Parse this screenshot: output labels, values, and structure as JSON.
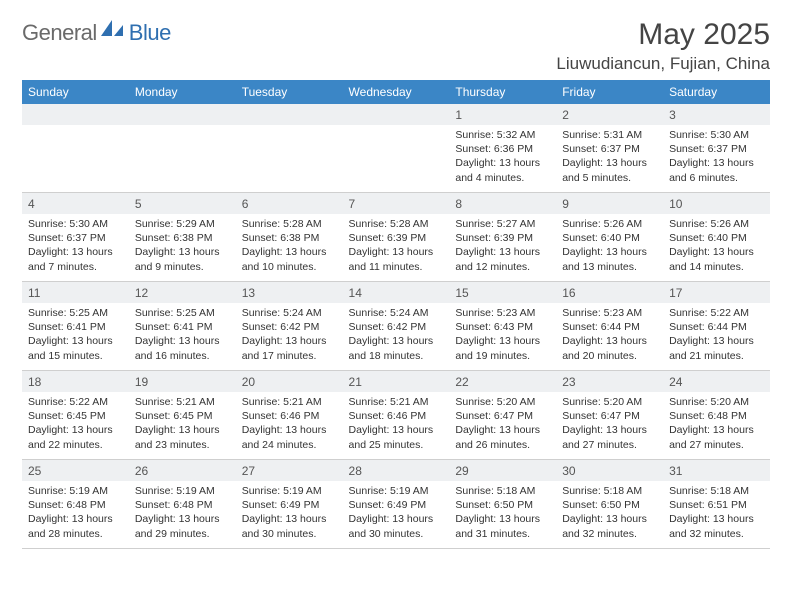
{
  "brand": {
    "general": "General",
    "blue": "Blue"
  },
  "title": "May 2025",
  "location": "Liuwudiancun, Fujian, China",
  "colors": {
    "header_bg": "#3b86c6",
    "header_text": "#ffffff",
    "daynum_bg": "#eef0f2",
    "grid_line": "#cfcfcf",
    "body_text": "#333333",
    "logo_gray": "#6a6a6a",
    "logo_blue": "#2f6fb0"
  },
  "weekdays": [
    "Sunday",
    "Monday",
    "Tuesday",
    "Wednesday",
    "Thursday",
    "Friday",
    "Saturday"
  ],
  "weeks": [
    [
      null,
      null,
      null,
      null,
      {
        "n": "1",
        "sr": "5:32 AM",
        "ss": "6:36 PM",
        "dl": "13 hours and 4 minutes."
      },
      {
        "n": "2",
        "sr": "5:31 AM",
        "ss": "6:37 PM",
        "dl": "13 hours and 5 minutes."
      },
      {
        "n": "3",
        "sr": "5:30 AM",
        "ss": "6:37 PM",
        "dl": "13 hours and 6 minutes."
      }
    ],
    [
      {
        "n": "4",
        "sr": "5:30 AM",
        "ss": "6:37 PM",
        "dl": "13 hours and 7 minutes."
      },
      {
        "n": "5",
        "sr": "5:29 AM",
        "ss": "6:38 PM",
        "dl": "13 hours and 9 minutes."
      },
      {
        "n": "6",
        "sr": "5:28 AM",
        "ss": "6:38 PM",
        "dl": "13 hours and 10 minutes."
      },
      {
        "n": "7",
        "sr": "5:28 AM",
        "ss": "6:39 PM",
        "dl": "13 hours and 11 minutes."
      },
      {
        "n": "8",
        "sr": "5:27 AM",
        "ss": "6:39 PM",
        "dl": "13 hours and 12 minutes."
      },
      {
        "n": "9",
        "sr": "5:26 AM",
        "ss": "6:40 PM",
        "dl": "13 hours and 13 minutes."
      },
      {
        "n": "10",
        "sr": "5:26 AM",
        "ss": "6:40 PM",
        "dl": "13 hours and 14 minutes."
      }
    ],
    [
      {
        "n": "11",
        "sr": "5:25 AM",
        "ss": "6:41 PM",
        "dl": "13 hours and 15 minutes."
      },
      {
        "n": "12",
        "sr": "5:25 AM",
        "ss": "6:41 PM",
        "dl": "13 hours and 16 minutes."
      },
      {
        "n": "13",
        "sr": "5:24 AM",
        "ss": "6:42 PM",
        "dl": "13 hours and 17 minutes."
      },
      {
        "n": "14",
        "sr": "5:24 AM",
        "ss": "6:42 PM",
        "dl": "13 hours and 18 minutes."
      },
      {
        "n": "15",
        "sr": "5:23 AM",
        "ss": "6:43 PM",
        "dl": "13 hours and 19 minutes."
      },
      {
        "n": "16",
        "sr": "5:23 AM",
        "ss": "6:44 PM",
        "dl": "13 hours and 20 minutes."
      },
      {
        "n": "17",
        "sr": "5:22 AM",
        "ss": "6:44 PM",
        "dl": "13 hours and 21 minutes."
      }
    ],
    [
      {
        "n": "18",
        "sr": "5:22 AM",
        "ss": "6:45 PM",
        "dl": "13 hours and 22 minutes."
      },
      {
        "n": "19",
        "sr": "5:21 AM",
        "ss": "6:45 PM",
        "dl": "13 hours and 23 minutes."
      },
      {
        "n": "20",
        "sr": "5:21 AM",
        "ss": "6:46 PM",
        "dl": "13 hours and 24 minutes."
      },
      {
        "n": "21",
        "sr": "5:21 AM",
        "ss": "6:46 PM",
        "dl": "13 hours and 25 minutes."
      },
      {
        "n": "22",
        "sr": "5:20 AM",
        "ss": "6:47 PM",
        "dl": "13 hours and 26 minutes."
      },
      {
        "n": "23",
        "sr": "5:20 AM",
        "ss": "6:47 PM",
        "dl": "13 hours and 27 minutes."
      },
      {
        "n": "24",
        "sr": "5:20 AM",
        "ss": "6:48 PM",
        "dl": "13 hours and 27 minutes."
      }
    ],
    [
      {
        "n": "25",
        "sr": "5:19 AM",
        "ss": "6:48 PM",
        "dl": "13 hours and 28 minutes."
      },
      {
        "n": "26",
        "sr": "5:19 AM",
        "ss": "6:48 PM",
        "dl": "13 hours and 29 minutes."
      },
      {
        "n": "27",
        "sr": "5:19 AM",
        "ss": "6:49 PM",
        "dl": "13 hours and 30 minutes."
      },
      {
        "n": "28",
        "sr": "5:19 AM",
        "ss": "6:49 PM",
        "dl": "13 hours and 30 minutes."
      },
      {
        "n": "29",
        "sr": "5:18 AM",
        "ss": "6:50 PM",
        "dl": "13 hours and 31 minutes."
      },
      {
        "n": "30",
        "sr": "5:18 AM",
        "ss": "6:50 PM",
        "dl": "13 hours and 32 minutes."
      },
      {
        "n": "31",
        "sr": "5:18 AM",
        "ss": "6:51 PM",
        "dl": "13 hours and 32 minutes."
      }
    ]
  ],
  "labels": {
    "sunrise": "Sunrise: ",
    "sunset": "Sunset: ",
    "daylight": "Daylight: "
  }
}
